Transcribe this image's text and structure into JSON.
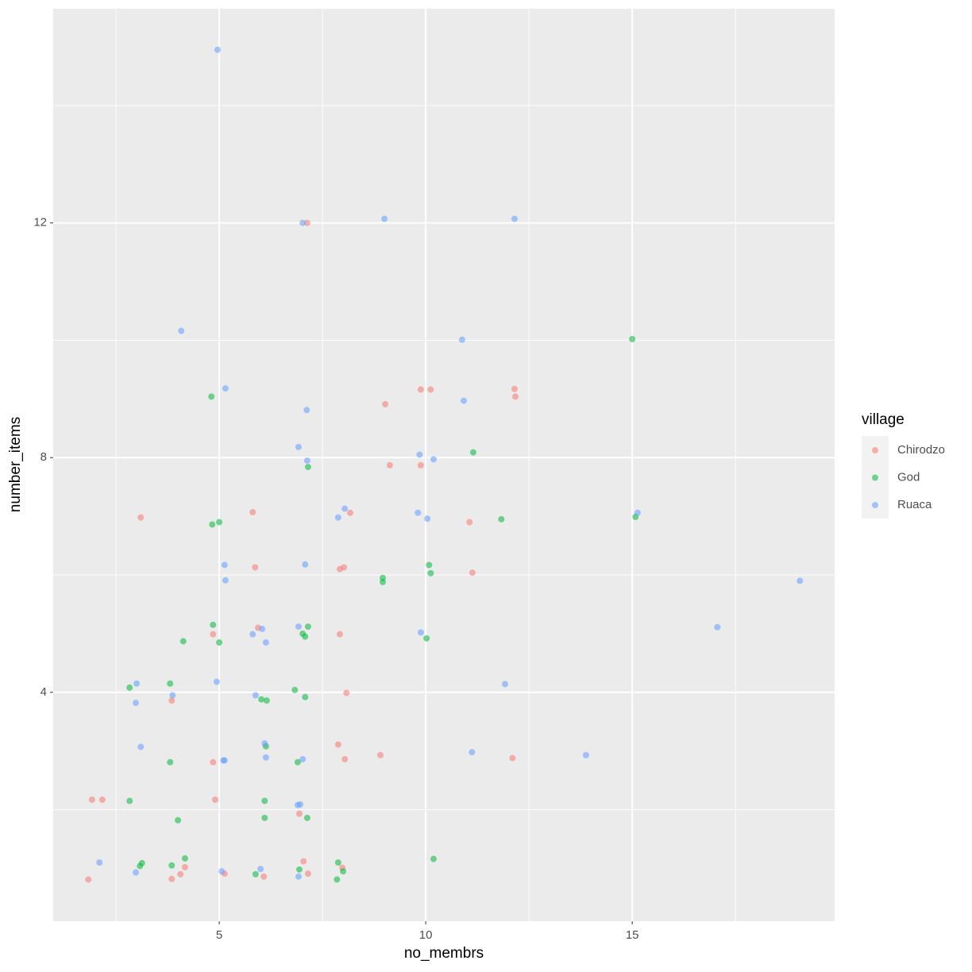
{
  "chart_data": {
    "type": "scatter",
    "x_label": "no_membrs",
    "y_label": "number_items",
    "legend_title": "village",
    "xlim": [
      0.98,
      19.9
    ],
    "ylim": [
      0.1,
      15.65
    ],
    "xticks": [
      5,
      10,
      15
    ],
    "yticks": [
      4,
      8,
      12
    ],
    "grid": true,
    "series": [
      {
        "name": "Chirodzo",
        "color": "#F8766D",
        "x": [
          1.83,
          1.92,
          2.17,
          3.1,
          3.85,
          3.85,
          4.06,
          4.17,
          4.85,
          4.85,
          4.9,
          5.13,
          5.81,
          5.87,
          5.94,
          6.08,
          6.94,
          7.04,
          7.13,
          7.15,
          7.88,
          7.92,
          7.92,
          8.02,
          7.98,
          8.04,
          8.08,
          8.17,
          8.9,
          9.02,
          9.13,
          9.88,
          9.88,
          10.12,
          11.06,
          11.13,
          12.1,
          12.15,
          12.17
        ],
        "values": [
          0.81,
          2.17,
          2.17,
          6.98,
          3.86,
          0.82,
          0.9,
          1.02,
          4.99,
          2.81,
          2.17,
          0.91,
          7.07,
          6.13,
          5.1,
          0.86,
          1.93,
          1.12,
          12.0,
          0.91,
          3.11,
          4.99,
          6.1,
          6.13,
          1.01,
          2.86,
          3.99,
          7.06,
          2.93,
          8.91,
          7.87,
          9.16,
          7.87,
          9.16,
          6.9,
          6.04,
          2.88,
          9.17,
          9.04
        ]
      },
      {
        "name": "God",
        "color": "#00BA38",
        "x": [
          2.83,
          2.83,
          3.08,
          3.13,
          3.81,
          3.81,
          3.85,
          4.0,
          4.13,
          4.17,
          4.81,
          4.83,
          4.85,
          5.0,
          5.0,
          5.88,
          6.02,
          6.1,
          6.1,
          6.13,
          6.15,
          6.83,
          6.9,
          6.94,
          7.02,
          7.08,
          7.08,
          7.13,
          7.15,
          7.15,
          7.88,
          7.85,
          8.0,
          8.96,
          8.96,
          10.02,
          10.08,
          10.12,
          10.19,
          11.15,
          11.83,
          15.0,
          15.08
        ],
        "values": [
          4.08,
          2.15,
          1.04,
          1.09,
          4.15,
          2.81,
          1.05,
          1.82,
          4.87,
          1.17,
          9.04,
          6.86,
          5.15,
          6.9,
          4.85,
          0.9,
          3.88,
          2.15,
          1.86,
          3.08,
          3.86,
          4.04,
          2.81,
          0.98,
          5.0,
          3.92,
          4.95,
          1.86,
          7.84,
          5.12,
          1.1,
          0.81,
          0.95,
          5.95,
          5.88,
          4.92,
          6.17,
          6.03,
          1.16,
          8.09,
          6.95,
          10.02,
          6.99
        ]
      },
      {
        "name": "Ruaca",
        "color": "#619CFF",
        "x": [
          2.1,
          2.98,
          3.0,
          2.98,
          3.1,
          3.87,
          4.08,
          4.94,
          4.96,
          5.06,
          5.1,
          5.13,
          5.13,
          5.15,
          5.15,
          5.81,
          5.88,
          6.0,
          6.04,
          6.1,
          6.13,
          6.13,
          6.92,
          6.9,
          6.92,
          6.92,
          6.96,
          7.02,
          7.02,
          7.08,
          7.12,
          7.13,
          7.88,
          8.04,
          9.0,
          9.81,
          9.85,
          9.88,
          10.04,
          10.19,
          10.88,
          10.92,
          11.12,
          11.92,
          12.15,
          13.88,
          15.13,
          17.06,
          19.06
        ],
        "values": [
          1.1,
          0.93,
          4.15,
          3.82,
          3.07,
          3.95,
          10.16,
          4.18,
          14.95,
          0.95,
          2.84,
          2.84,
          6.17,
          9.18,
          5.91,
          4.99,
          3.95,
          0.99,
          5.08,
          3.13,
          4.85,
          2.89,
          8.18,
          2.08,
          5.12,
          0.86,
          2.09,
          12.0,
          2.86,
          6.18,
          8.81,
          7.95,
          6.98,
          7.13,
          12.07,
          7.06,
          8.05,
          5.02,
          6.96,
          7.97,
          10.01,
          8.97,
          2.98,
          4.14,
          12.07,
          2.93,
          7.06,
          5.11,
          5.9
        ]
      }
    ]
  }
}
